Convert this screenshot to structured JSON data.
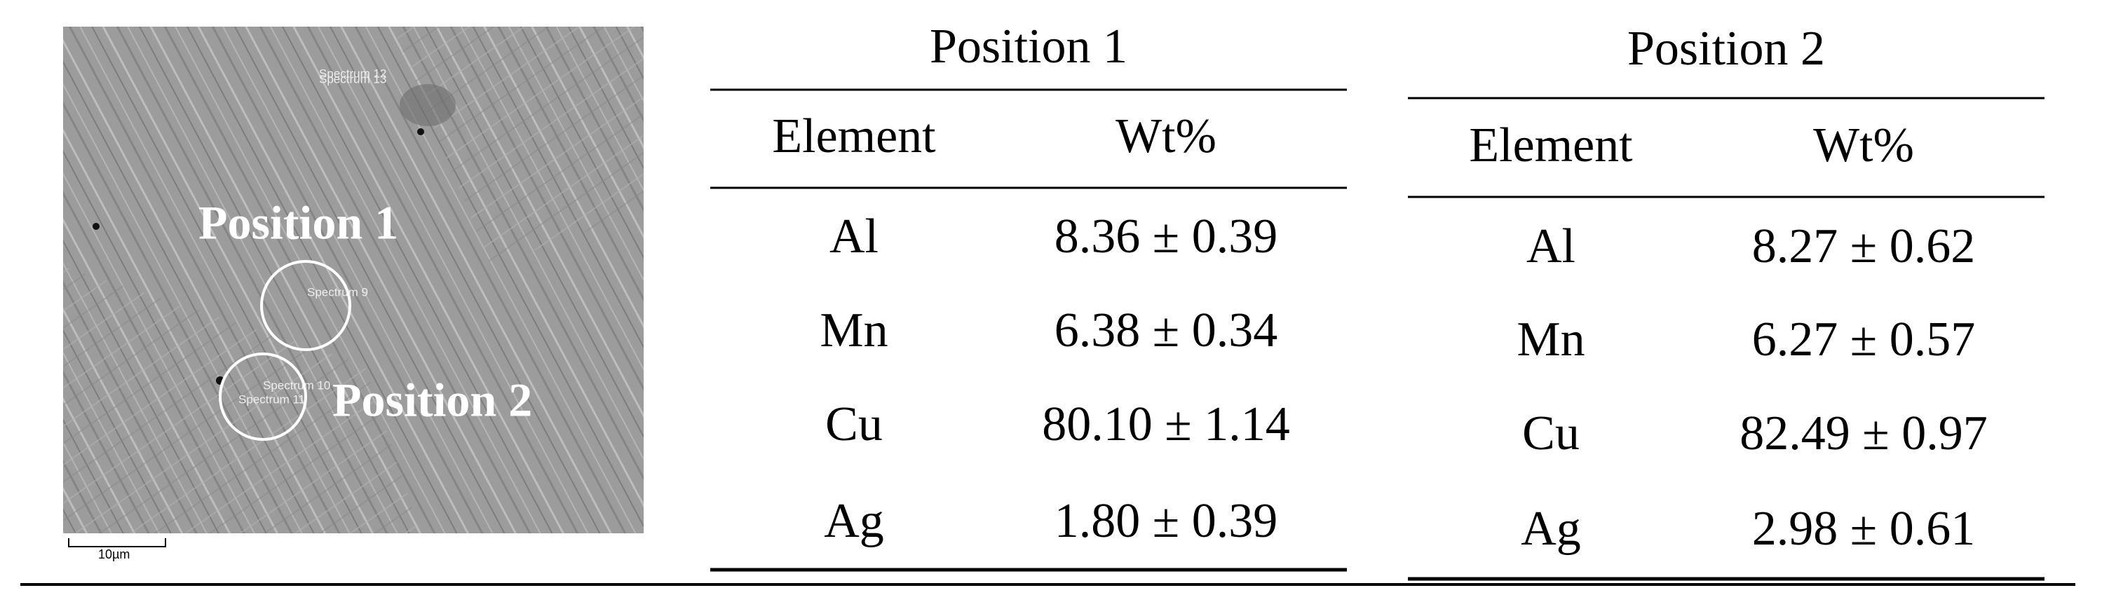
{
  "image": {
    "labels": [
      "Position 1",
      "Position 2"
    ],
    "spectra": [
      "Spectrum 12",
      "Spectrum 13",
      "Spectrum 9",
      "Spectrum 10",
      "Spectrum 11"
    ],
    "scale_bar": "10µm"
  },
  "tables": [
    {
      "title": "Position 1",
      "headers": [
        "Element",
        "Wt%"
      ],
      "rows": [
        [
          "Al",
          "8.36 ± 0.39"
        ],
        [
          "Mn",
          "6.38 ± 0.34"
        ],
        [
          "Cu",
          "80.10 ± 1.14"
        ],
        [
          "Ag",
          "1.80 ± 0.39"
        ]
      ]
    },
    {
      "title": "Position 2",
      "headers": [
        "Element",
        "Wt%"
      ],
      "rows": [
        [
          "Al",
          "8.27 ± 0.62"
        ],
        [
          "Mn",
          "6.27 ± 0.57"
        ],
        [
          "Cu",
          "82.49 ± 0.97"
        ],
        [
          "Ag",
          "2.98 ± 0.61"
        ]
      ]
    }
  ]
}
